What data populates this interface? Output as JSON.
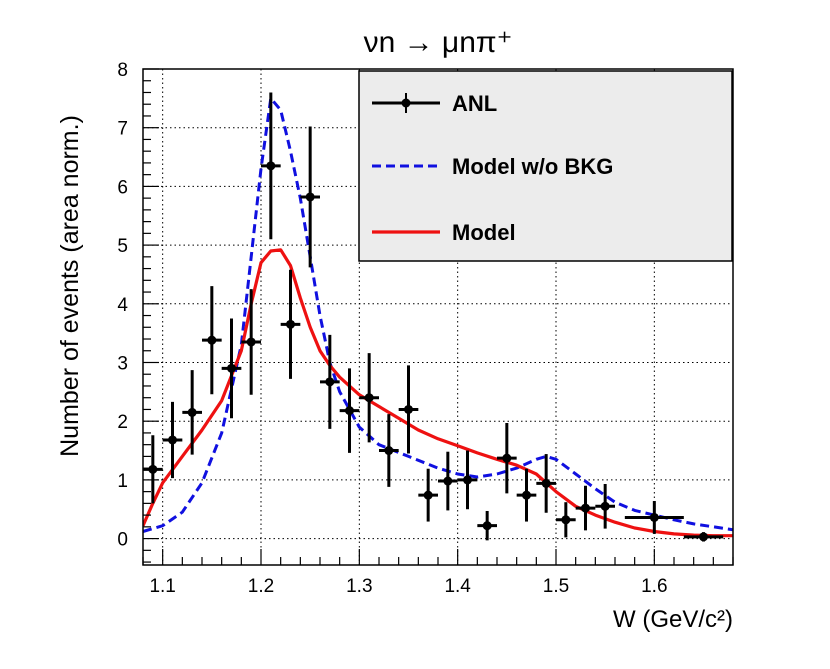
{
  "chart_data": {
    "type": "line",
    "title": "νn → μnπ⁺",
    "xlabel": "W (GeV/c²)",
    "ylabel": "Number of events (area norm.)",
    "xlim": [
      1.08,
      1.68
    ],
    "ylim": [
      -0.45,
      8.0
    ],
    "xticks": [
      1.1,
      1.2,
      1.3,
      1.4,
      1.5,
      1.6
    ],
    "xtick_labels": [
      "1.1",
      "1.2",
      "1.3",
      "1.4",
      "1.5",
      "1.6"
    ],
    "yticks": [
      0,
      1,
      2,
      3,
      4,
      5,
      6,
      7,
      8
    ],
    "ytick_labels": [
      "0",
      "1",
      "2",
      "3",
      "4",
      "5",
      "6",
      "7",
      "8"
    ],
    "grid": true,
    "legend_position": "top-right",
    "legend": [
      {
        "label": "ANL",
        "style": "points-with-errors",
        "color": "#000000"
      },
      {
        "label": "Model w/o BKG",
        "style": "dashed",
        "color": "#1010e0"
      },
      {
        "label": "Model",
        "style": "solid",
        "color": "#ee1111"
      }
    ],
    "series": [
      {
        "name": "ANL",
        "kind": "points",
        "color": "#000000",
        "x": [
          1.09,
          1.11,
          1.13,
          1.15,
          1.17,
          1.19,
          1.21,
          1.23,
          1.25,
          1.27,
          1.29,
          1.31,
          1.33,
          1.35,
          1.37,
          1.39,
          1.41,
          1.43,
          1.45,
          1.47,
          1.49,
          1.51,
          1.53,
          1.55,
          1.6,
          1.65
        ],
        "xerr": [
          0.01,
          0.01,
          0.01,
          0.01,
          0.01,
          0.01,
          0.01,
          0.01,
          0.01,
          0.01,
          0.01,
          0.01,
          0.01,
          0.01,
          0.01,
          0.01,
          0.01,
          0.01,
          0.01,
          0.01,
          0.01,
          0.01,
          0.01,
          0.01,
          0.03,
          0.02
        ],
        "y": [
          1.18,
          1.68,
          2.15,
          3.38,
          2.9,
          3.35,
          6.35,
          3.65,
          5.82,
          2.67,
          2.18,
          2.4,
          1.5,
          2.2,
          0.74,
          0.98,
          1.0,
          0.22,
          1.37,
          0.74,
          0.94,
          0.32,
          0.52,
          0.55,
          0.36,
          0.03
        ],
        "yerr": [
          0.58,
          0.65,
          0.72,
          0.92,
          0.85,
          0.9,
          1.25,
          0.93,
          1.2,
          0.8,
          0.72,
          0.76,
          0.62,
          0.75,
          0.45,
          0.5,
          0.5,
          0.25,
          0.6,
          0.45,
          0.5,
          0.3,
          0.38,
          0.38,
          0.28,
          0.08
        ]
      },
      {
        "name": "Model w/o BKG",
        "kind": "dashed-line",
        "color": "#1010e0",
        "x": [
          1.08,
          1.1,
          1.12,
          1.14,
          1.16,
          1.18,
          1.19,
          1.2,
          1.21,
          1.22,
          1.23,
          1.24,
          1.25,
          1.26,
          1.27,
          1.28,
          1.3,
          1.32,
          1.35,
          1.38,
          1.4,
          1.42,
          1.44,
          1.46,
          1.48,
          1.49,
          1.5,
          1.52,
          1.54,
          1.56,
          1.58,
          1.6,
          1.62,
          1.64,
          1.66,
          1.68
        ],
        "y": [
          0.12,
          0.22,
          0.45,
          0.95,
          1.8,
          3.3,
          4.8,
          6.3,
          7.5,
          7.3,
          6.6,
          5.8,
          4.8,
          3.8,
          3.0,
          2.5,
          1.9,
          1.6,
          1.4,
          1.2,
          1.1,
          1.05,
          1.1,
          1.2,
          1.35,
          1.4,
          1.35,
          1.1,
          0.85,
          0.62,
          0.48,
          0.4,
          0.32,
          0.25,
          0.2,
          0.15
        ]
      },
      {
        "name": "Model",
        "kind": "solid-line",
        "color": "#ee1111",
        "x": [
          1.08,
          1.09,
          1.1,
          1.12,
          1.14,
          1.16,
          1.18,
          1.19,
          1.2,
          1.21,
          1.22,
          1.23,
          1.24,
          1.25,
          1.26,
          1.27,
          1.28,
          1.3,
          1.32,
          1.34,
          1.36,
          1.38,
          1.4,
          1.42,
          1.44,
          1.46,
          1.48,
          1.5,
          1.52,
          1.54,
          1.56,
          1.58,
          1.6,
          1.62,
          1.64,
          1.66,
          1.68
        ],
        "y": [
          0.22,
          0.6,
          0.95,
          1.4,
          1.85,
          2.35,
          3.2,
          4.0,
          4.7,
          4.9,
          4.92,
          4.65,
          4.1,
          3.6,
          3.2,
          2.95,
          2.75,
          2.45,
          2.25,
          2.05,
          1.85,
          1.7,
          1.58,
          1.46,
          1.35,
          1.25,
          1.1,
          0.8,
          0.55,
          0.4,
          0.28,
          0.18,
          0.12,
          0.08,
          0.06,
          0.05,
          0.05
        ]
      }
    ]
  }
}
